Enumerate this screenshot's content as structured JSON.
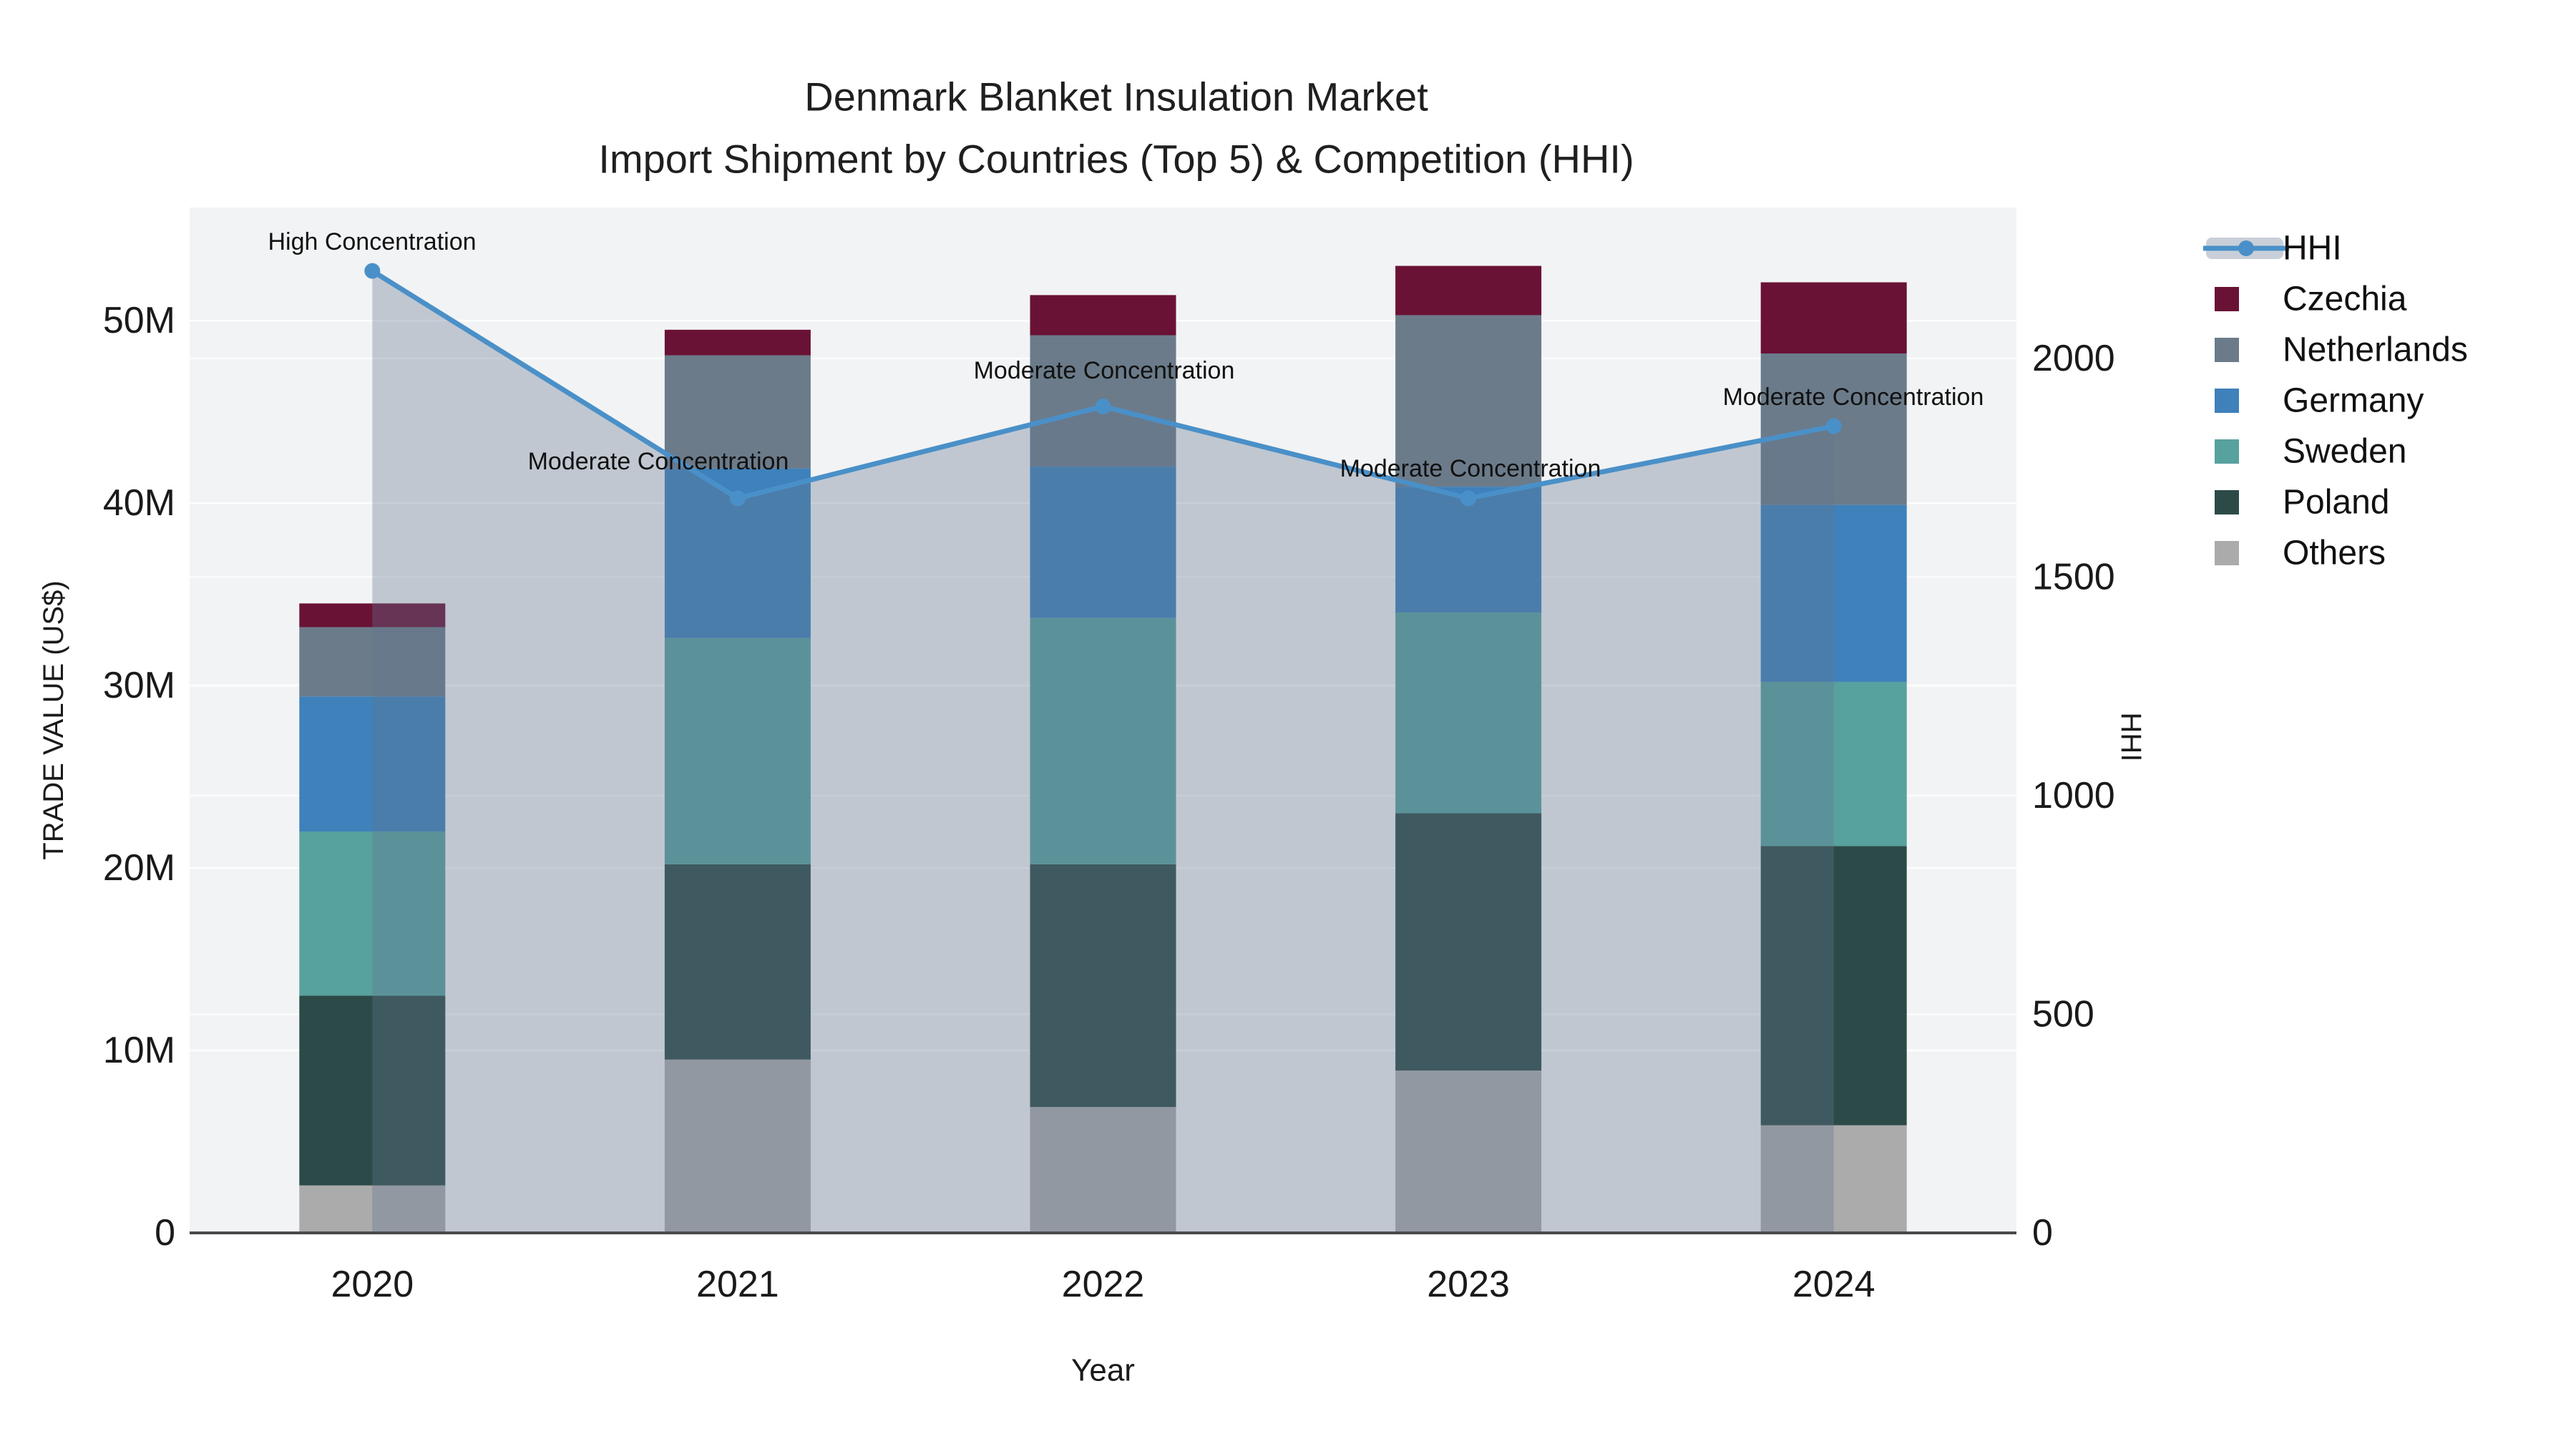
{
  "chart_data": {
    "type": "bar",
    "title_lines": [
      "Denmark Blanket Insulation Market",
      "Import Shipment by Countries (Top 5) & Competition (HHI)"
    ],
    "xlabel": "Year",
    "ylabel": "TRADE VALUE (US$)",
    "y2label": "HHI",
    "categories": [
      "2020",
      "2021",
      "2022",
      "2023",
      "2024"
    ],
    "stacking": "bottom-to-top",
    "series": [
      {
        "name": "Others",
        "color": "#ABABAB",
        "values": [
          2.6,
          9.5,
          6.9,
          8.9,
          5.9
        ]
      },
      {
        "name": "Poland",
        "color": "#2C4B48",
        "values": [
          10.4,
          10.7,
          13.3,
          14.1,
          15.3
        ]
      },
      {
        "name": "Sweden",
        "color": "#57A19E",
        "values": [
          9.0,
          12.4,
          13.5,
          11.0,
          9.0
        ]
      },
      {
        "name": "Germany",
        "color": "#3E81BB",
        "values": [
          7.4,
          9.3,
          8.3,
          6.9,
          9.7
        ]
      },
      {
        "name": "Netherlands",
        "color": "#6B7B8A",
        "values": [
          3.8,
          6.2,
          7.2,
          9.4,
          8.3
        ]
      },
      {
        "name": "Czechia",
        "color": "#691236",
        "values": [
          1.3,
          1.4,
          2.2,
          2.7,
          3.9
        ]
      }
    ],
    "stack_totals_musd": [
      34.5,
      49.5,
      51.4,
      53.0,
      52.1
    ],
    "line_series": {
      "name": "HHI",
      "values": [
        2200,
        1680,
        1890,
        1680,
        1845
      ],
      "color": "#4A90C8",
      "area_fill": "rgba(100,117,143,0.35)"
    },
    "ylim": [
      0,
      56.2
    ],
    "y2lim": [
      0,
      2345
    ],
    "yticks": [
      {
        "v": 0,
        "label": "0"
      },
      {
        "v": 10,
        "label": "10M"
      },
      {
        "v": 20,
        "label": "20M"
      },
      {
        "v": 30,
        "label": "30M"
      },
      {
        "v": 40,
        "label": "40M"
      },
      {
        "v": 50,
        "label": "50M"
      }
    ],
    "y2ticks": [
      {
        "v": 0,
        "label": "0"
      },
      {
        "v": 500,
        "label": "500"
      },
      {
        "v": 1000,
        "label": "1000"
      },
      {
        "v": 1500,
        "label": "1500"
      },
      {
        "v": 2000,
        "label": "2000"
      }
    ],
    "annotations": [
      {
        "text": "High Concentration",
        "x": 520,
        "y": 338
      },
      {
        "text": "Moderate Concentration",
        "x": 920,
        "y": 645
      },
      {
        "text": "Moderate Concentration",
        "x": 1543,
        "y": 518
      },
      {
        "text": "Moderate Concentration",
        "x": 2055,
        "y": 655
      },
      {
        "text": "Moderate Concentration",
        "x": 2590,
        "y": 555
      }
    ],
    "legend": {
      "position": "right",
      "items": [
        {
          "label": "HHI",
          "type": "line",
          "color": "#4A90C8"
        },
        {
          "label": "Czechia",
          "type": "swatch",
          "color": "#691236"
        },
        {
          "label": "Netherlands",
          "type": "swatch",
          "color": "#6B7B8A"
        },
        {
          "label": "Germany",
          "type": "swatch",
          "color": "#3E81BB"
        },
        {
          "label": "Sweden",
          "type": "swatch",
          "color": "#57A19E"
        },
        {
          "label": "Poland",
          "type": "swatch",
          "color": "#2C4B48"
        },
        {
          "label": "Others",
          "type": "swatch",
          "color": "#ABABAB"
        }
      ]
    },
    "grid": true,
    "colors": {
      "plot_background": "#F2F3F4",
      "figure_background": "#FFFFFF",
      "gridline": "#FFFFFF",
      "axis_line": "#4A4A4A",
      "text": "#1A1A1A"
    }
  }
}
